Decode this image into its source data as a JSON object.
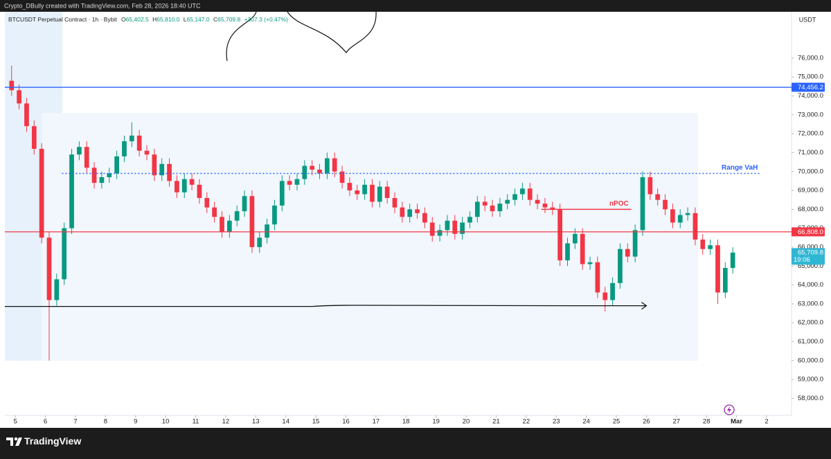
{
  "header": {
    "credit": "Crypto_DBully created with TradingView.com, Feb 28, 2026 18:40 UTC"
  },
  "footer": {
    "brand": "TradingView"
  },
  "chart_data": {
    "type": "candlestick",
    "symbol": "BTCUSDT Perpetual Contract · 1h · Bybit",
    "legend": {
      "o_label": "O",
      "o": "65,402.5",
      "h_label": "H",
      "h": "65,810.0",
      "l_label": "L",
      "l": "65,147.0",
      "c_label": "C",
      "c": "65,709.8",
      "change": "+307.3 (+0.47%)"
    },
    "currency": "USDT",
    "up_color": "#089981",
    "down_color": "#f23645",
    "xlim": [
      -0.35,
      25.83
    ],
    "ylim": [
      57100,
      78450
    ],
    "xticks": [
      {
        "value": 0,
        "label": "5"
      },
      {
        "value": 1,
        "label": "6"
      },
      {
        "value": 2,
        "label": "7"
      },
      {
        "value": 3,
        "label": "8"
      },
      {
        "value": 4,
        "label": "9"
      },
      {
        "value": 5,
        "label": "10"
      },
      {
        "value": 6,
        "label": "11"
      },
      {
        "value": 7,
        "label": "12"
      },
      {
        "value": 8,
        "label": "13"
      },
      {
        "value": 9,
        "label": "14"
      },
      {
        "value": 10,
        "label": "15"
      },
      {
        "value": 11,
        "label": "16"
      },
      {
        "value": 12,
        "label": "17"
      },
      {
        "value": 13,
        "label": "18"
      },
      {
        "value": 14,
        "label": "19"
      },
      {
        "value": 15,
        "label": "20"
      },
      {
        "value": 16,
        "label": "21"
      },
      {
        "value": 17,
        "label": "22"
      },
      {
        "value": 18,
        "label": "23"
      },
      {
        "value": 19,
        "label": "24"
      },
      {
        "value": 20,
        "label": "25"
      },
      {
        "value": 21,
        "label": "26"
      },
      {
        "value": 22,
        "label": "27"
      },
      {
        "value": 23,
        "label": "28"
      },
      {
        "value": 24,
        "label": "Mar"
      },
      {
        "value": 25,
        "label": "2"
      }
    ],
    "yticks": [
      {
        "value": 58000,
        "label": "58,000.0"
      },
      {
        "value": 59000,
        "label": "59,000.0"
      },
      {
        "value": 60000,
        "label": "60,000.0"
      },
      {
        "value": 61000,
        "label": "61,000.0"
      },
      {
        "value": 62000,
        "label": "62,000.0"
      },
      {
        "value": 63000,
        "label": "63,000.0"
      },
      {
        "value": 64000,
        "label": "64,000.0"
      },
      {
        "value": 65000,
        "label": "65,000.0"
      },
      {
        "value": 66000,
        "label": "66,000.0"
      },
      {
        "value": 67000,
        "label": "67,000.0"
      },
      {
        "value": 68000,
        "label": "68,000.0"
      },
      {
        "value": 69000,
        "label": "69,000.0"
      },
      {
        "value": 70000,
        "label": "70,000.0"
      },
      {
        "value": 71000,
        "label": "71,000.0"
      },
      {
        "value": 72000,
        "label": "72,000.0"
      },
      {
        "value": 73000,
        "label": "73,000.0"
      },
      {
        "value": 74000,
        "label": "74,000.0"
      },
      {
        "value": 75000,
        "label": "75,000.0"
      },
      {
        "value": 76000,
        "label": "76,000.0"
      }
    ],
    "grid": false,
    "x": [
      -0.25,
      0,
      0.25,
      0.5,
      0.75,
      1,
      1.25,
      1.5,
      1.75,
      2,
      2.25,
      2.5,
      2.75,
      3,
      3.25,
      3.5,
      3.75,
      4,
      4.25,
      4.5,
      4.75,
      5,
      5.25,
      5.5,
      5.75,
      6,
      6.25,
      6.5,
      6.75,
      7,
      7.25,
      7.5,
      7.75,
      8,
      8.25,
      8.5,
      8.75,
      9,
      9.25,
      9.5,
      9.75,
      10,
      10.25,
      10.5,
      10.75,
      11,
      11.25,
      11.5,
      11.75,
      12,
      12.25,
      12.5,
      12.75,
      13,
      13.25,
      13.5,
      13.75,
      14,
      14.25,
      14.5,
      14.75,
      15,
      15.25,
      15.5,
      15.75,
      16,
      16.25,
      16.5,
      16.75,
      17,
      17.25,
      17.5,
      17.75,
      18,
      18.25,
      18.5,
      18.75,
      19,
      19.25,
      19.5,
      19.75,
      20,
      20.25,
      20.5,
      20.75,
      21,
      21.25,
      21.5,
      21.75,
      22,
      22.25,
      22.5,
      22.75,
      23,
      23.25,
      23.5,
      23.75
    ],
    "open": [
      74800,
      74300,
      73600,
      72400,
      71200,
      66500,
      63200,
      64300,
      67000,
      70900,
      71300,
      70200,
      69400,
      69700,
      69900,
      70800,
      71600,
      71900,
      71100,
      70900,
      69800,
      70400,
      69500,
      68900,
      69600,
      69300,
      68600,
      68100,
      67600,
      66800,
      67400,
      67900,
      68700,
      66000,
      66500,
      67200,
      68200,
      69500,
      69300,
      69600,
      70300,
      70100,
      69900,
      70700,
      70000,
      69400,
      69000,
      68800,
      69300,
      68400,
      69200,
      68600,
      68100,
      67600,
      68000,
      67800,
      67300,
      66600,
      66900,
      67400,
      66700,
      67300,
      67600,
      68400,
      68200,
      67900,
      68300,
      68500,
      68800,
      69100,
      68500,
      68300,
      68100,
      68000,
      65300,
      66200,
      66700,
      65100,
      65200,
      63600,
      63200,
      64100,
      65900,
      65500,
      66900,
      69700,
      68800,
      68500,
      68000,
      67300,
      67700,
      67800,
      66400,
      65900,
      66100,
      63600,
      64900
    ],
    "high": [
      75600,
      74600,
      73900,
      72700,
      71500,
      66800,
      64600,
      67300,
      71200,
      71600,
      71600,
      70500,
      70000,
      70200,
      71100,
      71900,
      72600,
      72200,
      71400,
      71200,
      70700,
      70700,
      69800,
      69900,
      69900,
      69600,
      68900,
      68400,
      67900,
      67700,
      68200,
      69000,
      69000,
      66800,
      67500,
      68500,
      69800,
      69800,
      69900,
      70600,
      70600,
      70400,
      71000,
      71000,
      70300,
      69700,
      69300,
      69600,
      69600,
      69500,
      69500,
      68900,
      68400,
      68300,
      68300,
      68100,
      67600,
      67200,
      67700,
      67700,
      67600,
      67900,
      68700,
      68700,
      68500,
      68600,
      68800,
      69100,
      69400,
      69400,
      68800,
      68600,
      68400,
      68300,
      66500,
      67000,
      67000,
      65500,
      65500,
      63900,
      64400,
      66200,
      66200,
      67200,
      70000,
      70000,
      69100,
      68800,
      68300,
      68000,
      68100,
      68100,
      66700,
      66400,
      66400,
      65200,
      66000
    ],
    "low": [
      74000,
      73300,
      72100,
      70900,
      66200,
      60000,
      62900,
      64000,
      66700,
      70600,
      69900,
      69100,
      69100,
      69400,
      69600,
      70500,
      71300,
      70800,
      70600,
      69500,
      69500,
      69200,
      68600,
      68600,
      69000,
      68300,
      67800,
      67300,
      66500,
      66500,
      67100,
      67600,
      65700,
      65700,
      66200,
      66900,
      67900,
      69000,
      69000,
      69300,
      69800,
      69600,
      69600,
      69700,
      69100,
      68700,
      68500,
      68500,
      68100,
      68100,
      68300,
      67800,
      67300,
      67300,
      67500,
      67000,
      66300,
      66300,
      66600,
      66400,
      66400,
      67000,
      67300,
      67900,
      67600,
      67600,
      68000,
      68200,
      68500,
      68200,
      68000,
      67800,
      67700,
      65000,
      65000,
      65900,
      64800,
      64800,
      63300,
      62600,
      62900,
      63800,
      65200,
      65200,
      66600,
      68500,
      68200,
      67700,
      67000,
      67000,
      67400,
      66100,
      65600,
      65600,
      63000,
      63300,
      64600
    ],
    "close": [
      74300,
      73600,
      72400,
      71200,
      66500,
      63200,
      64300,
      67000,
      70900,
      71300,
      70200,
      69400,
      69700,
      69900,
      70800,
      71600,
      71900,
      71100,
      70900,
      69800,
      70400,
      69500,
      68900,
      69600,
      69300,
      68600,
      68100,
      67600,
      66800,
      67400,
      67900,
      68700,
      66000,
      66500,
      67200,
      68200,
      69500,
      69300,
      69600,
      70300,
      70100,
      69900,
      70700,
      70000,
      69400,
      69000,
      68800,
      69300,
      68400,
      69200,
      68600,
      68100,
      67600,
      68000,
      67800,
      67300,
      66600,
      66900,
      67400,
      66700,
      67300,
      67600,
      68400,
      68200,
      67900,
      68300,
      68500,
      68800,
      69100,
      68500,
      68300,
      68100,
      68000,
      65300,
      66200,
      66700,
      65100,
      65200,
      63600,
      63200,
      64100,
      65900,
      65500,
      66900,
      69700,
      68800,
      68500,
      68000,
      67300,
      67700,
      67800,
      66400,
      65900,
      66100,
      63600,
      64900,
      65709.8
    ],
    "hlines": [
      {
        "value": 74456.2,
        "label": "74,456.2",
        "color": "#2962ff"
      },
      {
        "value": 66808.0,
        "label": "66,808.0",
        "color": "#f23645"
      }
    ],
    "last_price": {
      "value": 65709.8,
      "label": "65,709.8",
      "countdown": "19:06",
      "color": "#2fb6d3"
    },
    "levels": [
      {
        "text": "Range VaH",
        "value": 69900,
        "x": [
          1.55,
          24.8
        ],
        "color": "#2962ff",
        "style": "dotted"
      },
      {
        "text": "nPOC",
        "value": 68000,
        "x": [
          17.5,
          20.5
        ],
        "color": "#f23645",
        "style": "solid"
      }
    ],
    "arrow": {
      "value": 62900,
      "x": [
        -0.35,
        21.0
      ],
      "color": "#111111"
    }
  }
}
